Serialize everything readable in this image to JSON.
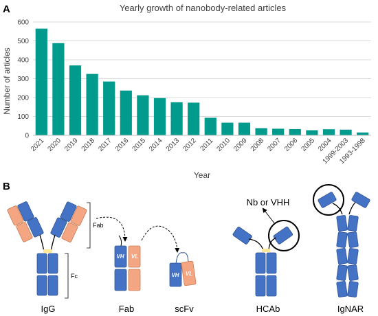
{
  "panel_a_label": "A",
  "panel_b_label": "B",
  "chart_data": {
    "type": "bar",
    "title": "Yearly growth of nanobody-related articles",
    "xlabel": "Year",
    "ylabel": "Number of articles",
    "categories": [
      "2021",
      "2020",
      "2019",
      "2018",
      "2017",
      "2016",
      "2015",
      "2014",
      "2013",
      "2012",
      "2011",
      "2010",
      "2009",
      "2008",
      "2007",
      "2006",
      "2005",
      "2004",
      "1999-2003",
      "1993-1998"
    ],
    "values": [
      565,
      488,
      370,
      325,
      285,
      237,
      212,
      197,
      175,
      173,
      93,
      67,
      67,
      38,
      35,
      33,
      27,
      32,
      30,
      15
    ],
    "ylim": [
      0,
      600
    ],
    "yticks": [
      0,
      100,
      200,
      300,
      400,
      500,
      600
    ],
    "grid": true,
    "color": "#009B8D"
  },
  "diagram": {
    "colors": {
      "heavy": "#4472C4",
      "light": "#F4A582",
      "hinge": "#FFE699"
    },
    "antibodies": {
      "igg": "IgG",
      "fab": "Fab",
      "scfv": "scFv",
      "hcab": "HCAb",
      "ignar": "IgNAR"
    },
    "brackets": {
      "fab": "Fab",
      "fc": "Fc"
    },
    "domains": {
      "vh": "VH",
      "vl": "VL"
    },
    "callout": "Nb or VHH"
  }
}
